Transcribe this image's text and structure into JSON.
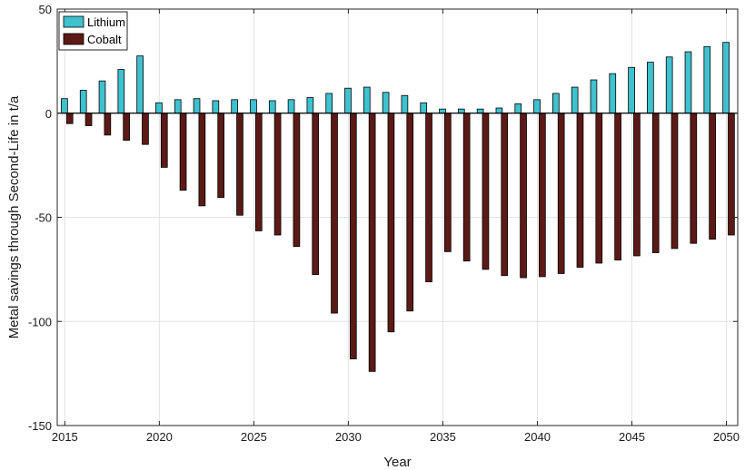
{
  "chart_data": {
    "type": "bar",
    "xlabel": "Year",
    "ylabel": "Metal savings through Second-Life in t/a",
    "x": [
      2015,
      2016,
      2017,
      2018,
      2019,
      2020,
      2021,
      2022,
      2023,
      2024,
      2025,
      2026,
      2027,
      2028,
      2029,
      2030,
      2031,
      2032,
      2033,
      2034,
      2035,
      2036,
      2037,
      2038,
      2039,
      2040,
      2041,
      2042,
      2043,
      2044,
      2045,
      2046,
      2047,
      2048,
      2049,
      2050
    ],
    "series": [
      {
        "name": "Lithium",
        "color": "#3fc1cf",
        "values": [
          7,
          11,
          15.5,
          21,
          27.5,
          5,
          6.5,
          7,
          6,
          6.5,
          6.5,
          6,
          6.5,
          7.5,
          9.5,
          12,
          12.5,
          10,
          8.5,
          5,
          2,
          2,
          2,
          2.5,
          4.5,
          6.5,
          9.5,
          12.5,
          16,
          19,
          22,
          24.5,
          27,
          29.5,
          32,
          34
        ]
      },
      {
        "name": "Cobalt",
        "color": "#5c1a16",
        "values": [
          -5,
          -6,
          -10.5,
          -13,
          -15,
          -26,
          -37,
          -44.5,
          -40.5,
          -49,
          -56.5,
          -58.5,
          -64,
          -77.5,
          -96,
          -118,
          -124,
          -105,
          -95,
          -81,
          -66.5,
          -71,
          -75,
          -78,
          -79,
          -78.5,
          -77,
          -74,
          -72,
          -70.5,
          -68.5,
          -67,
          -65,
          -62.5,
          -60.5,
          -58.5
        ]
      }
    ],
    "xlim": [
      2014.6,
      2050.6
    ],
    "ylim": [
      -150,
      50
    ],
    "xticks": [
      2015,
      2020,
      2025,
      2030,
      2035,
      2040,
      2045,
      2050
    ],
    "yticks": [
      -150,
      -100,
      -50,
      0,
      50
    ],
    "grid": true,
    "legend_position": "top-left"
  }
}
